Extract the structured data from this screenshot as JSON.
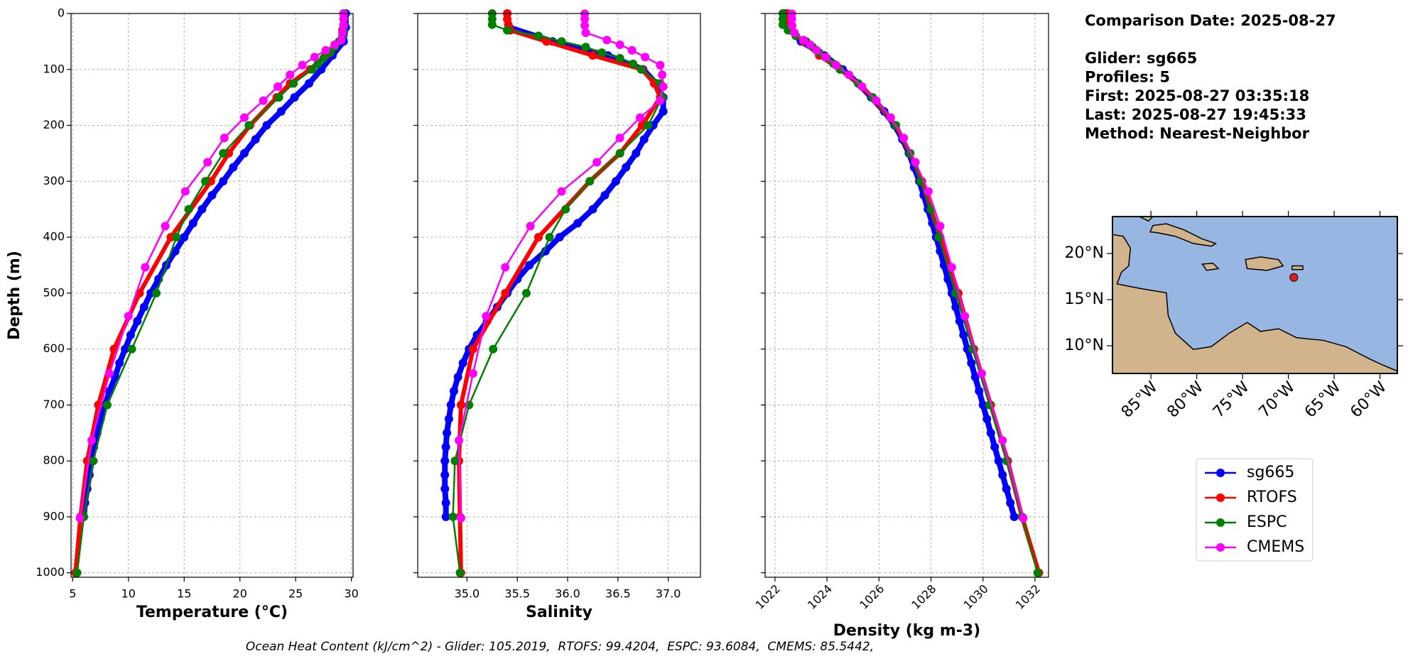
{
  "chart_data": [
    {
      "type": "profile",
      "xlabel": "Temperature (°C)",
      "ylabel": "Depth (m)",
      "xlim": [
        4.85,
        30.15
      ],
      "xticks": [
        5,
        10,
        15,
        20,
        25,
        30
      ],
      "ylim": [
        1008,
        0
      ],
      "yticks": [
        0,
        100,
        200,
        300,
        400,
        500,
        600,
        700,
        800,
        900,
        1000
      ],
      "grid": true,
      "series": [
        {
          "name": "sg665",
          "color": "#0000ff",
          "linewidth": 8,
          "y": [
            0,
            25,
            50,
            75,
            100,
            125,
            150,
            175,
            200,
            225,
            250,
            275,
            300,
            325,
            350,
            375,
            400,
            425,
            450,
            475,
            500,
            525,
            550,
            575,
            600,
            625,
            650,
            675,
            700,
            725,
            750,
            775,
            800,
            825,
            850,
            875,
            900
          ],
          "x": [
            29.5,
            29.5,
            29.3,
            28.3,
            27.3,
            26.2,
            24.9,
            23.7,
            22.4,
            21.4,
            20.4,
            19.4,
            18.5,
            17.5,
            16.6,
            15.8,
            15.0,
            14.2,
            13.4,
            12.7,
            12.0,
            11.4,
            10.8,
            10.2,
            9.7,
            9.2,
            8.8,
            8.3,
            7.9,
            7.5,
            7.2,
            6.9,
            6.7,
            6.5,
            6.3,
            6.1,
            6.0
          ]
        },
        {
          "name": "RTOFS",
          "color": "#ff0000",
          "linewidth": 6,
          "y": [
            0,
            10,
            20,
            30,
            50,
            75,
            100,
            125,
            150,
            200,
            250,
            300,
            400,
            500,
            600,
            700,
            800,
            900,
            1000
          ],
          "x": [
            29.3,
            29.3,
            29.3,
            29.2,
            28.9,
            27.7,
            26.3,
            24.5,
            23.3,
            20.9,
            19.0,
            17.4,
            13.8,
            11.0,
            8.7,
            7.3,
            6.3,
            5.7,
            5.25
          ]
        },
        {
          "name": "ESPC",
          "color": "#008000",
          "linewidth": 2.5,
          "y": [
            0,
            10,
            20,
            30,
            40,
            50,
            60,
            70,
            80,
            90,
            100,
            125,
            150,
            200,
            250,
            300,
            350,
            400,
            500,
            600,
            700,
            800,
            900,
            1000
          ],
          "x": [
            29.3,
            29.3,
            29.3,
            29.3,
            29.2,
            28.9,
            28.5,
            28.1,
            27.5,
            27.0,
            26.5,
            24.8,
            23.5,
            20.8,
            18.5,
            16.9,
            15.4,
            14.3,
            12.5,
            10.3,
            8.1,
            6.85,
            6.0,
            5.4
          ]
        },
        {
          "name": "CMEMS",
          "color": "#ff00ff",
          "linewidth": 2.5,
          "y": [
            0.5,
            9.6,
            21.6,
            34.4,
            47.4,
            55.8,
            65.8,
            77.9,
            92.3,
            109.7,
            130.7,
            155.9,
            186.1,
            222.5,
            266,
            318.1,
            380.2,
            453.9,
            541.1,
            643.6,
            763.3,
            902.3
          ],
          "x": [
            29.3,
            29.3,
            29.3,
            29.2,
            29.1,
            28.5,
            27.7,
            26.7,
            25.6,
            24.5,
            23.4,
            22.1,
            20.4,
            18.6,
            17.1,
            15.1,
            13.3,
            11.5,
            10.0,
            8.3,
            6.7,
            5.65
          ]
        }
      ]
    },
    {
      "type": "profile",
      "xlabel": "Salinity",
      "xlim": [
        34.51,
        37.32
      ],
      "xticks": [
        {
          "value": 35,
          "label": "35.0"
        },
        35.5,
        {
          "value": 36,
          "label": "36.0"
        },
        36.5,
        {
          "value": 37,
          "label": "37.0"
        }
      ],
      "ylim": [
        1008,
        0
      ],
      "yticks": [
        0,
        100,
        200,
        300,
        400,
        500,
        600,
        700,
        800,
        900,
        1000
      ],
      "show_ytick_labels": false,
      "grid": true,
      "series": [
        {
          "color": "#0000ff",
          "linewidth": 8,
          "y": [
            0,
            25,
            50,
            75,
            100,
            125,
            150,
            175,
            200,
            225,
            250,
            275,
            300,
            325,
            350,
            375,
            400,
            425,
            450,
            475,
            500,
            525,
            550,
            575,
            600,
            625,
            650,
            675,
            700,
            725,
            750,
            775,
            800,
            825,
            850,
            875,
            900
          ],
          "x": [
            35.4,
            35.42,
            35.85,
            36.4,
            36.75,
            36.88,
            36.95,
            36.95,
            36.85,
            36.76,
            36.68,
            36.58,
            36.48,
            36.37,
            36.25,
            36.1,
            35.92,
            35.78,
            35.62,
            35.5,
            35.4,
            35.3,
            35.2,
            35.1,
            35.02,
            34.96,
            34.91,
            34.87,
            34.84,
            34.82,
            34.8,
            34.79,
            34.78,
            34.78,
            34.78,
            34.79,
            34.79
          ]
        },
        {
          "color": "#ff0000",
          "linewidth": 6,
          "y": [
            0,
            10,
            20,
            30,
            50,
            75,
            100,
            125,
            150,
            200,
            250,
            300,
            400,
            500,
            600,
            700,
            800,
            900,
            1000
          ],
          "x": [
            35.4,
            35.4,
            35.41,
            35.43,
            35.79,
            36.25,
            36.74,
            36.86,
            36.92,
            36.74,
            36.52,
            36.22,
            35.71,
            35.38,
            35.06,
            34.94,
            34.92,
            34.93,
            34.94
          ]
        },
        {
          "color": "#008000",
          "linewidth": 2.5,
          "y": [
            0,
            10,
            20,
            30,
            40,
            50,
            60,
            70,
            80,
            90,
            100,
            125,
            150,
            200,
            250,
            300,
            350,
            400,
            500,
            600,
            700,
            800,
            900,
            1000
          ],
          "x": [
            35.25,
            35.25,
            35.25,
            35.4,
            35.71,
            35.94,
            36.18,
            36.34,
            36.52,
            36.65,
            36.73,
            36.92,
            36.94,
            36.8,
            36.52,
            36.22,
            35.98,
            35.82,
            35.59,
            35.26,
            35.02,
            34.88,
            34.86,
            34.93
          ]
        },
        {
          "color": "#ff00ff",
          "linewidth": 2.5,
          "y": [
            0.5,
            9.6,
            21.6,
            34.4,
            47.4,
            55.8,
            65.8,
            77.9,
            92.3,
            109.7,
            130.7,
            155.9,
            186.1,
            222.5,
            266,
            318.1,
            380.2,
            453.9,
            541.1,
            643.6,
            763.3,
            902.3
          ],
          "x": [
            36.17,
            36.17,
            36.17,
            36.18,
            36.39,
            36.52,
            36.64,
            36.77,
            36.92,
            36.94,
            36.95,
            36.92,
            36.72,
            36.52,
            36.29,
            35.94,
            35.63,
            35.38,
            35.19,
            35.06,
            34.92,
            34.94
          ]
        }
      ]
    },
    {
      "type": "profile",
      "xlabel": "Density (kg m-3)",
      "xlim": [
        1021.62,
        1032.52
      ],
      "xticks": [
        1022,
        1024,
        1026,
        1028,
        1030,
        1032
      ],
      "xtick_rotation": 45,
      "ylim": [
        1008,
        0
      ],
      "yticks": [
        0,
        100,
        200,
        300,
        400,
        500,
        600,
        700,
        800,
        900,
        1000
      ],
      "show_ytick_labels": false,
      "grid": true,
      "series": [
        {
          "color": "#0000ff",
          "linewidth": 8,
          "y": [
            0,
            25,
            50,
            75,
            100,
            125,
            150,
            175,
            200,
            225,
            250,
            275,
            300,
            325,
            350,
            375,
            400,
            425,
            450,
            475,
            500,
            525,
            550,
            575,
            600,
            625,
            650,
            675,
            700,
            725,
            750,
            775,
            800,
            825,
            850,
            875,
            900
          ],
          "x": [
            1022.4,
            1022.5,
            1023.0,
            1023.9,
            1024.6,
            1025.2,
            1025.7,
            1026.2,
            1026.6,
            1026.9,
            1027.15,
            1027.35,
            1027.55,
            1027.72,
            1027.88,
            1028.05,
            1028.2,
            1028.35,
            1028.5,
            1028.65,
            1028.8,
            1028.95,
            1029.1,
            1029.25,
            1029.4,
            1029.55,
            1029.7,
            1029.85,
            1030.0,
            1030.15,
            1030.3,
            1030.45,
            1030.6,
            1030.75,
            1030.9,
            1031.05,
            1031.2
          ]
        },
        {
          "color": "#ff0000",
          "linewidth": 6,
          "y": [
            0,
            10,
            20,
            30,
            50,
            75,
            100,
            125,
            150,
            200,
            250,
            300,
            400,
            500,
            600,
            700,
            800,
            900,
            1000
          ],
          "x": [
            1022.5,
            1022.5,
            1022.52,
            1022.6,
            1023.1,
            1023.7,
            1024.5,
            1025.2,
            1025.75,
            1026.65,
            1027.2,
            1027.65,
            1028.35,
            1029.05,
            1029.65,
            1030.3,
            1030.95,
            1031.5,
            1032.15
          ]
        },
        {
          "color": "#008000",
          "linewidth": 2.5,
          "y": [
            0,
            10,
            20,
            30,
            40,
            50,
            60,
            70,
            80,
            90,
            100,
            125,
            150,
            200,
            250,
            300,
            350,
            400,
            500,
            600,
            700,
            800,
            900,
            1000
          ],
          "x": [
            1022.3,
            1022.3,
            1022.3,
            1022.5,
            1022.8,
            1023.2,
            1023.45,
            1023.7,
            1024.0,
            1024.25,
            1024.5,
            1025.2,
            1025.75,
            1026.65,
            1027.2,
            1027.6,
            1028.0,
            1028.3,
            1028.95,
            1029.6,
            1030.25,
            1030.9,
            1031.5,
            1032.1
          ]
        },
        {
          "color": "#ff00ff",
          "linewidth": 2.5,
          "y": [
            0.5,
            9.6,
            21.6,
            34.4,
            47.4,
            55.8,
            65.8,
            77.9,
            92.3,
            109.7,
            130.7,
            155.9,
            186.1,
            222.5,
            266,
            318.1,
            380.2,
            453.9,
            541.1,
            643.6,
            763.3,
            902.3
          ],
          "x": [
            1022.65,
            1022.65,
            1022.66,
            1022.75,
            1023.1,
            1023.35,
            1023.6,
            1023.95,
            1024.35,
            1024.85,
            1025.35,
            1025.9,
            1026.45,
            1026.95,
            1027.4,
            1027.9,
            1028.35,
            1028.8,
            1029.3,
            1029.95,
            1030.75,
            1031.55
          ]
        }
      ]
    },
    {
      "type": "map",
      "xlim": [
        -89.2,
        -58.1
      ],
      "xticks": [
        {
          "value": -85,
          "label": "85°W"
        },
        {
          "value": -80,
          "label": "80°W"
        },
        {
          "value": -75,
          "label": "75°W"
        },
        {
          "value": -70,
          "label": "70°W"
        },
        {
          "value": -65,
          "label": "65°W"
        },
        {
          "value": -60,
          "label": "60°W"
        }
      ],
      "xtick_rotation": 45,
      "ylim": [
        7,
        24
      ],
      "yticks": [
        {
          "value": 10,
          "label": "10°N"
        },
        {
          "value": 15,
          "label": "15°N"
        },
        {
          "value": 20,
          "label": "20°N"
        }
      ],
      "points": {
        "color": "#e02020",
        "x": [
          -69.4
        ],
        "y": [
          17.4
        ]
      }
    }
  ],
  "info": {
    "title": "Comparison Date: 2025-08-27",
    "lines": [
      "Glider: sg665",
      "Profiles: 5",
      "First: 2025-08-27 03:35:18",
      "Last: 2025-08-27 19:45:33",
      "Method: Nearest-Neighbor"
    ]
  },
  "footer": "Ocean Heat Content (kJ/cm^2) - Glider: 105.2019,  RTOFS: 99.4204,  ESPC: 93.6084,  CMEMS: 85.5442,"
}
